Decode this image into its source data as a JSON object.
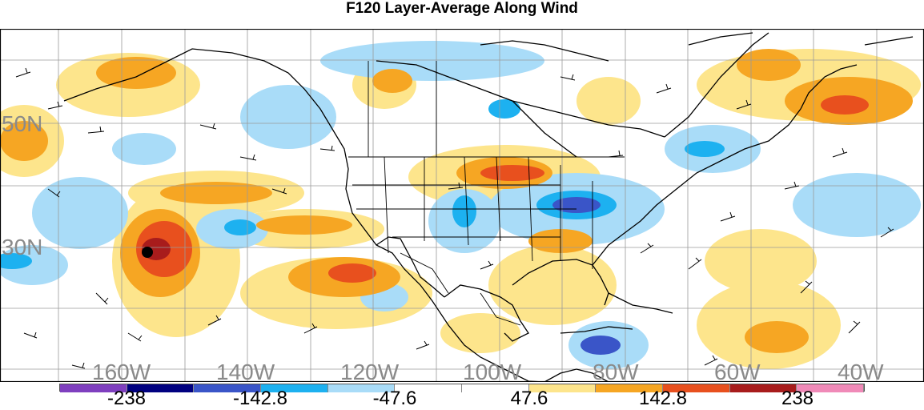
{
  "title": "F120 Layer-Average Along Wind",
  "map": {
    "lat_labels": [
      "50N",
      "30N"
    ],
    "lon_labels": [
      "160W",
      "140W",
      "120W",
      "100W",
      "80W",
      "60W",
      "40W"
    ]
  },
  "colorbar": {
    "colors": [
      "#7f3fbf",
      "#000080",
      "#3a55c8",
      "#1db1f0",
      "#a9dcf8",
      "#ffffff",
      "#ffffff",
      "#fde58c",
      "#f6a623",
      "#e8501e",
      "#a81c1c",
      "#f08ab8"
    ],
    "tick_labels": [
      "-238",
      "-142.8",
      "-47.6",
      "47.6",
      "142.8",
      "238"
    ]
  }
}
